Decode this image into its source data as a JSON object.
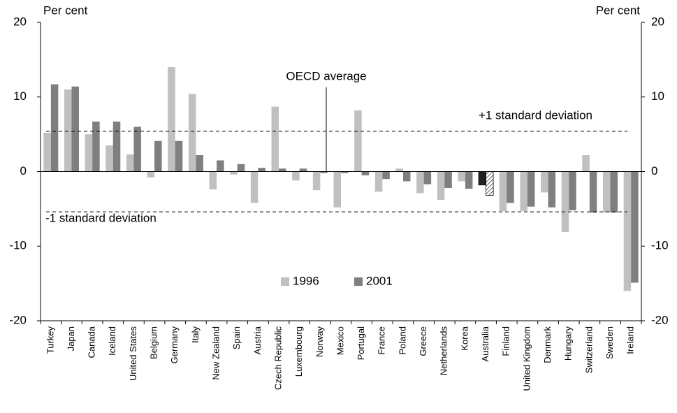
{
  "chart_data": {
    "type": "bar",
    "y_label": "Per cent",
    "y2_label": "Per cent",
    "categories": [
      "Turkey",
      "Japan",
      "Canada",
      "Iceland",
      "United States",
      "Belgium",
      "Germany",
      "Italy",
      "New Zealand",
      "Spain",
      "Austria",
      "Czech Republic",
      "Luxembourg",
      "Norway",
      "Mexico",
      "Portugal",
      "France",
      "Poland",
      "Greece",
      "Netherlands",
      "Korea",
      "Australia",
      "Finland",
      "United Kingdom",
      "Denmark",
      "Hungary",
      "Switzerland",
      "Sweden",
      "Ireland"
    ],
    "series": [
      {
        "name": "1996",
        "color": "#c0c0c0",
        "values": [
          5.2,
          11.0,
          5.0,
          3.5,
          2.3,
          -0.8,
          14.0,
          10.4,
          -2.4,
          -0.4,
          -4.2,
          8.7,
          -1.2,
          -2.5,
          -4.8,
          8.2,
          -2.7,
          0.4,
          -2.9,
          -3.8,
          -1.3,
          -1.8,
          -5.3,
          -5.3,
          -2.8,
          -8.1,
          2.2,
          -5.5,
          -16.0
        ]
      },
      {
        "name": "2001",
        "color": "#7f7f7f",
        "values": [
          11.7,
          11.4,
          6.7,
          6.7,
          6.0,
          4.1,
          4.1,
          2.2,
          1.5,
          1.0,
          0.5,
          0.4,
          0.4,
          -0.2,
          -0.2,
          -0.5,
          -1.0,
          -1.3,
          -1.7,
          -2.2,
          -2.3,
          -3.2,
          -4.2,
          -4.7,
          -4.8,
          -5.2,
          -5.5,
          -5.5,
          -14.9
        ]
      }
    ],
    "highlight_index": 21,
    "highlight_colors": [
      "#222222",
      "hatch"
    ],
    "ylim": [
      -20,
      20
    ],
    "yticks": [
      -20,
      -10,
      0,
      10,
      20
    ],
    "y2lim": [
      -20,
      20
    ],
    "y2ticks": [
      -20,
      -10,
      0,
      10,
      20
    ],
    "reference_lines": [
      {
        "value": 5.4,
        "label": "+1 standard deviation"
      },
      {
        "value": -5.4,
        "label": "-1 standard deviation"
      }
    ],
    "vertical_annotation": "OECD average",
    "legend_position": "center"
  }
}
